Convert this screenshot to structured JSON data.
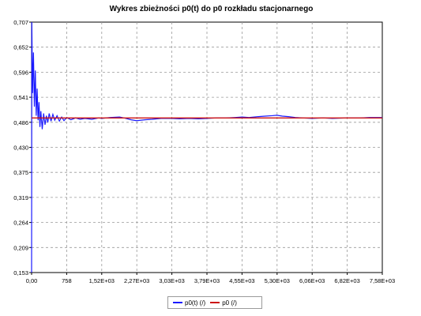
{
  "title": "Wykres zbieżności p0(t) do p0 rozkładu stacjonarnego",
  "chart_data": {
    "type": "line",
    "title": "Wykres zbieżności p0(t) do p0 rozkładu stacjonarnego",
    "xlim": [
      0,
      7580
    ],
    "ylim": [
      0.153,
      0.707
    ],
    "x_tick_labels": [
      "0,00",
      "758",
      "1,52E+03",
      "2,27E+03",
      "3,03E+03",
      "3,79E+03",
      "4,55E+03",
      "5,30E+03",
      "6,06E+03",
      "6,82E+03",
      "7,58E+03"
    ],
    "y_tick_labels": [
      "0,707",
      "0,652",
      "0,596",
      "0,541",
      "0,486",
      "0,430",
      "0,375",
      "0,319",
      "0,264",
      "0,209",
      "0,153"
    ],
    "grid": true,
    "legend_position": "bottom-center",
    "series": [
      {
        "name": "p0(t) (/)",
        "color": "#1a1aff",
        "points": [
          [
            0,
            0.153
          ],
          [
            5,
            0.707
          ],
          [
            20,
            0.55
          ],
          [
            40,
            0.64
          ],
          [
            60,
            0.52
          ],
          [
            80,
            0.6
          ],
          [
            100,
            0.5
          ],
          [
            120,
            0.56
          ],
          [
            140,
            0.49
          ],
          [
            160,
            0.53
          ],
          [
            180,
            0.475
          ],
          [
            200,
            0.51
          ],
          [
            230,
            0.47
          ],
          [
            260,
            0.505
          ],
          [
            290,
            0.48
          ],
          [
            320,
            0.5
          ],
          [
            350,
            0.485
          ],
          [
            380,
            0.505
          ],
          [
            420,
            0.488
          ],
          [
            460,
            0.503
          ],
          [
            500,
            0.49
          ],
          [
            550,
            0.5
          ],
          [
            600,
            0.488
          ],
          [
            650,
            0.497
          ],
          [
            700,
            0.489
          ],
          [
            758,
            0.496
          ],
          [
            850,
            0.491
          ],
          [
            950,
            0.495
          ],
          [
            1050,
            0.492
          ],
          [
            1150,
            0.494
          ],
          [
            1300,
            0.492
          ],
          [
            1450,
            0.495
          ],
          [
            1520,
            0.494
          ],
          [
            1700,
            0.496
          ],
          [
            1900,
            0.497
          ],
          [
            2000,
            0.495
          ],
          [
            2150,
            0.491
          ],
          [
            2270,
            0.489
          ],
          [
            2450,
            0.491
          ],
          [
            2600,
            0.492
          ],
          [
            2800,
            0.494
          ],
          [
            3030,
            0.494
          ],
          [
            3200,
            0.493
          ],
          [
            3400,
            0.494
          ],
          [
            3600,
            0.493
          ],
          [
            3790,
            0.494
          ],
          [
            4000,
            0.495
          ],
          [
            4200,
            0.495
          ],
          [
            4400,
            0.496
          ],
          [
            4550,
            0.497
          ],
          [
            4700,
            0.496
          ],
          [
            4900,
            0.498
          ],
          [
            5050,
            0.499
          ],
          [
            5200,
            0.5
          ],
          [
            5300,
            0.501
          ],
          [
            5420,
            0.499
          ],
          [
            5550,
            0.498
          ],
          [
            5700,
            0.496
          ],
          [
            5850,
            0.495
          ],
          [
            6060,
            0.494
          ],
          [
            6300,
            0.495
          ],
          [
            6500,
            0.494
          ],
          [
            6820,
            0.495
          ],
          [
            7100,
            0.495
          ],
          [
            7300,
            0.496
          ],
          [
            7580,
            0.496
          ]
        ]
      },
      {
        "name": "p0 (/)",
        "color": "#cc1111",
        "points": [
          [
            0,
            0.495
          ],
          [
            7580,
            0.495
          ]
        ]
      }
    ]
  }
}
